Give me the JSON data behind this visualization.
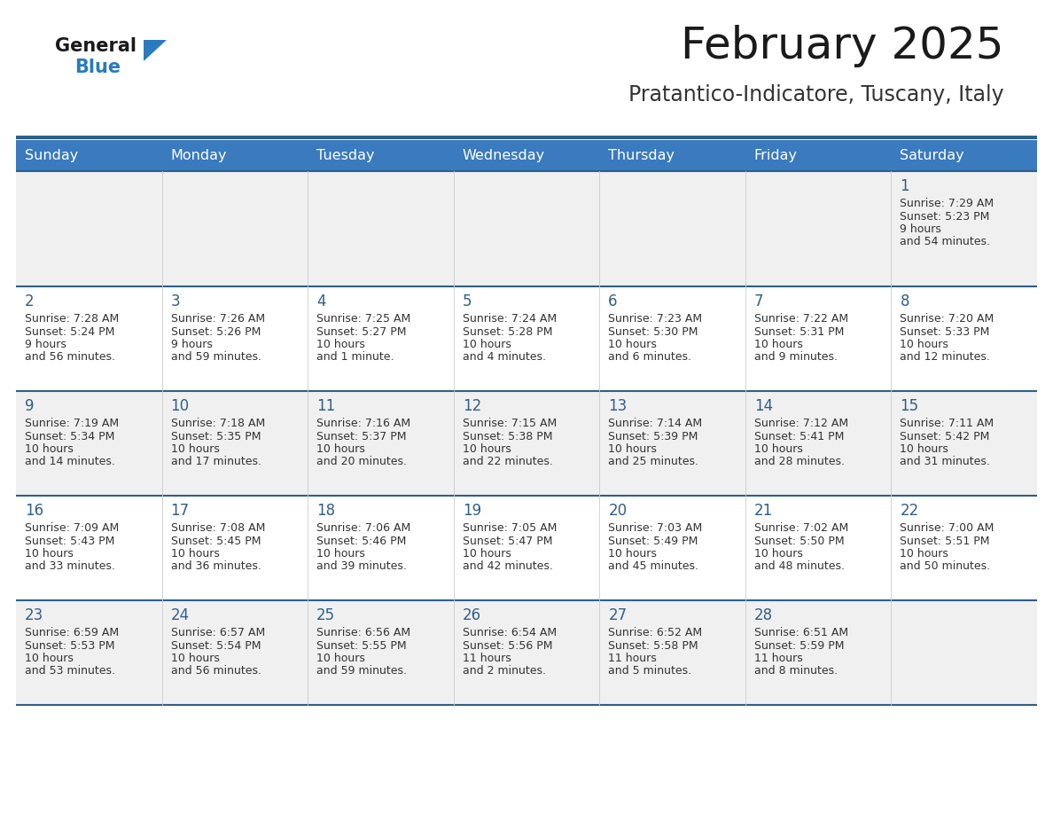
{
  "title": "February 2025",
  "subtitle": "Pratantico-Indicatore, Tuscany, Italy",
  "header_bg": "#3a7abf",
  "header_text": "#ffffff",
  "row0_bg": "#f0f0f0",
  "row1_bg": "#ffffff",
  "row2_bg": "#f0f0f0",
  "row3_bg": "#ffffff",
  "row4_bg": "#f0f0f0",
  "border_color": "#2e5f8a",
  "title_color": "#1a1a1a",
  "subtitle_color": "#333333",
  "day_number_color": "#2e5f8a",
  "cell_text_color": "#333333",
  "days_of_week": [
    "Sunday",
    "Monday",
    "Tuesday",
    "Wednesday",
    "Thursday",
    "Friday",
    "Saturday"
  ],
  "calendar": [
    [
      null,
      null,
      null,
      null,
      null,
      null,
      1
    ],
    [
      2,
      3,
      4,
      5,
      6,
      7,
      8
    ],
    [
      9,
      10,
      11,
      12,
      13,
      14,
      15
    ],
    [
      16,
      17,
      18,
      19,
      20,
      21,
      22
    ],
    [
      23,
      24,
      25,
      26,
      27,
      28,
      null
    ]
  ],
  "cell_data": {
    "1": {
      "sunrise": "7:29 AM",
      "sunset": "5:23 PM",
      "daylight": "9 hours and 54 minutes."
    },
    "2": {
      "sunrise": "7:28 AM",
      "sunset": "5:24 PM",
      "daylight": "9 hours and 56 minutes."
    },
    "3": {
      "sunrise": "7:26 AM",
      "sunset": "5:26 PM",
      "daylight": "9 hours and 59 minutes."
    },
    "4": {
      "sunrise": "7:25 AM",
      "sunset": "5:27 PM",
      "daylight": "10 hours and 1 minute."
    },
    "5": {
      "sunrise": "7:24 AM",
      "sunset": "5:28 PM",
      "daylight": "10 hours and 4 minutes."
    },
    "6": {
      "sunrise": "7:23 AM",
      "sunset": "5:30 PM",
      "daylight": "10 hours and 6 minutes."
    },
    "7": {
      "sunrise": "7:22 AM",
      "sunset": "5:31 PM",
      "daylight": "10 hours and 9 minutes."
    },
    "8": {
      "sunrise": "7:20 AM",
      "sunset": "5:33 PM",
      "daylight": "10 hours and 12 minutes."
    },
    "9": {
      "sunrise": "7:19 AM",
      "sunset": "5:34 PM",
      "daylight": "10 hours and 14 minutes."
    },
    "10": {
      "sunrise": "7:18 AM",
      "sunset": "5:35 PM",
      "daylight": "10 hours and 17 minutes."
    },
    "11": {
      "sunrise": "7:16 AM",
      "sunset": "5:37 PM",
      "daylight": "10 hours and 20 minutes."
    },
    "12": {
      "sunrise": "7:15 AM",
      "sunset": "5:38 PM",
      "daylight": "10 hours and 22 minutes."
    },
    "13": {
      "sunrise": "7:14 AM",
      "sunset": "5:39 PM",
      "daylight": "10 hours and 25 minutes."
    },
    "14": {
      "sunrise": "7:12 AM",
      "sunset": "5:41 PM",
      "daylight": "10 hours and 28 minutes."
    },
    "15": {
      "sunrise": "7:11 AM",
      "sunset": "5:42 PM",
      "daylight": "10 hours and 31 minutes."
    },
    "16": {
      "sunrise": "7:09 AM",
      "sunset": "5:43 PM",
      "daylight": "10 hours and 33 minutes."
    },
    "17": {
      "sunrise": "7:08 AM",
      "sunset": "5:45 PM",
      "daylight": "10 hours and 36 minutes."
    },
    "18": {
      "sunrise": "7:06 AM",
      "sunset": "5:46 PM",
      "daylight": "10 hours and 39 minutes."
    },
    "19": {
      "sunrise": "7:05 AM",
      "sunset": "5:47 PM",
      "daylight": "10 hours and 42 minutes."
    },
    "20": {
      "sunrise": "7:03 AM",
      "sunset": "5:49 PM",
      "daylight": "10 hours and 45 minutes."
    },
    "21": {
      "sunrise": "7:02 AM",
      "sunset": "5:50 PM",
      "daylight": "10 hours and 48 minutes."
    },
    "22": {
      "sunrise": "7:00 AM",
      "sunset": "5:51 PM",
      "daylight": "10 hours and 50 minutes."
    },
    "23": {
      "sunrise": "6:59 AM",
      "sunset": "5:53 PM",
      "daylight": "10 hours and 53 minutes."
    },
    "24": {
      "sunrise": "6:57 AM",
      "sunset": "5:54 PM",
      "daylight": "10 hours and 56 minutes."
    },
    "25": {
      "sunrise": "6:56 AM",
      "sunset": "5:55 PM",
      "daylight": "10 hours and 59 minutes."
    },
    "26": {
      "sunrise": "6:54 AM",
      "sunset": "5:56 PM",
      "daylight": "11 hours and 2 minutes."
    },
    "27": {
      "sunrise": "6:52 AM",
      "sunset": "5:58 PM",
      "daylight": "11 hours and 5 minutes."
    },
    "28": {
      "sunrise": "6:51 AM",
      "sunset": "5:59 PM",
      "daylight": "11 hours and 8 minutes."
    }
  },
  "logo_general_color": "#1a1a1a",
  "logo_blue_color": "#2a7abf",
  "logo_triangle_color": "#2a7abf"
}
